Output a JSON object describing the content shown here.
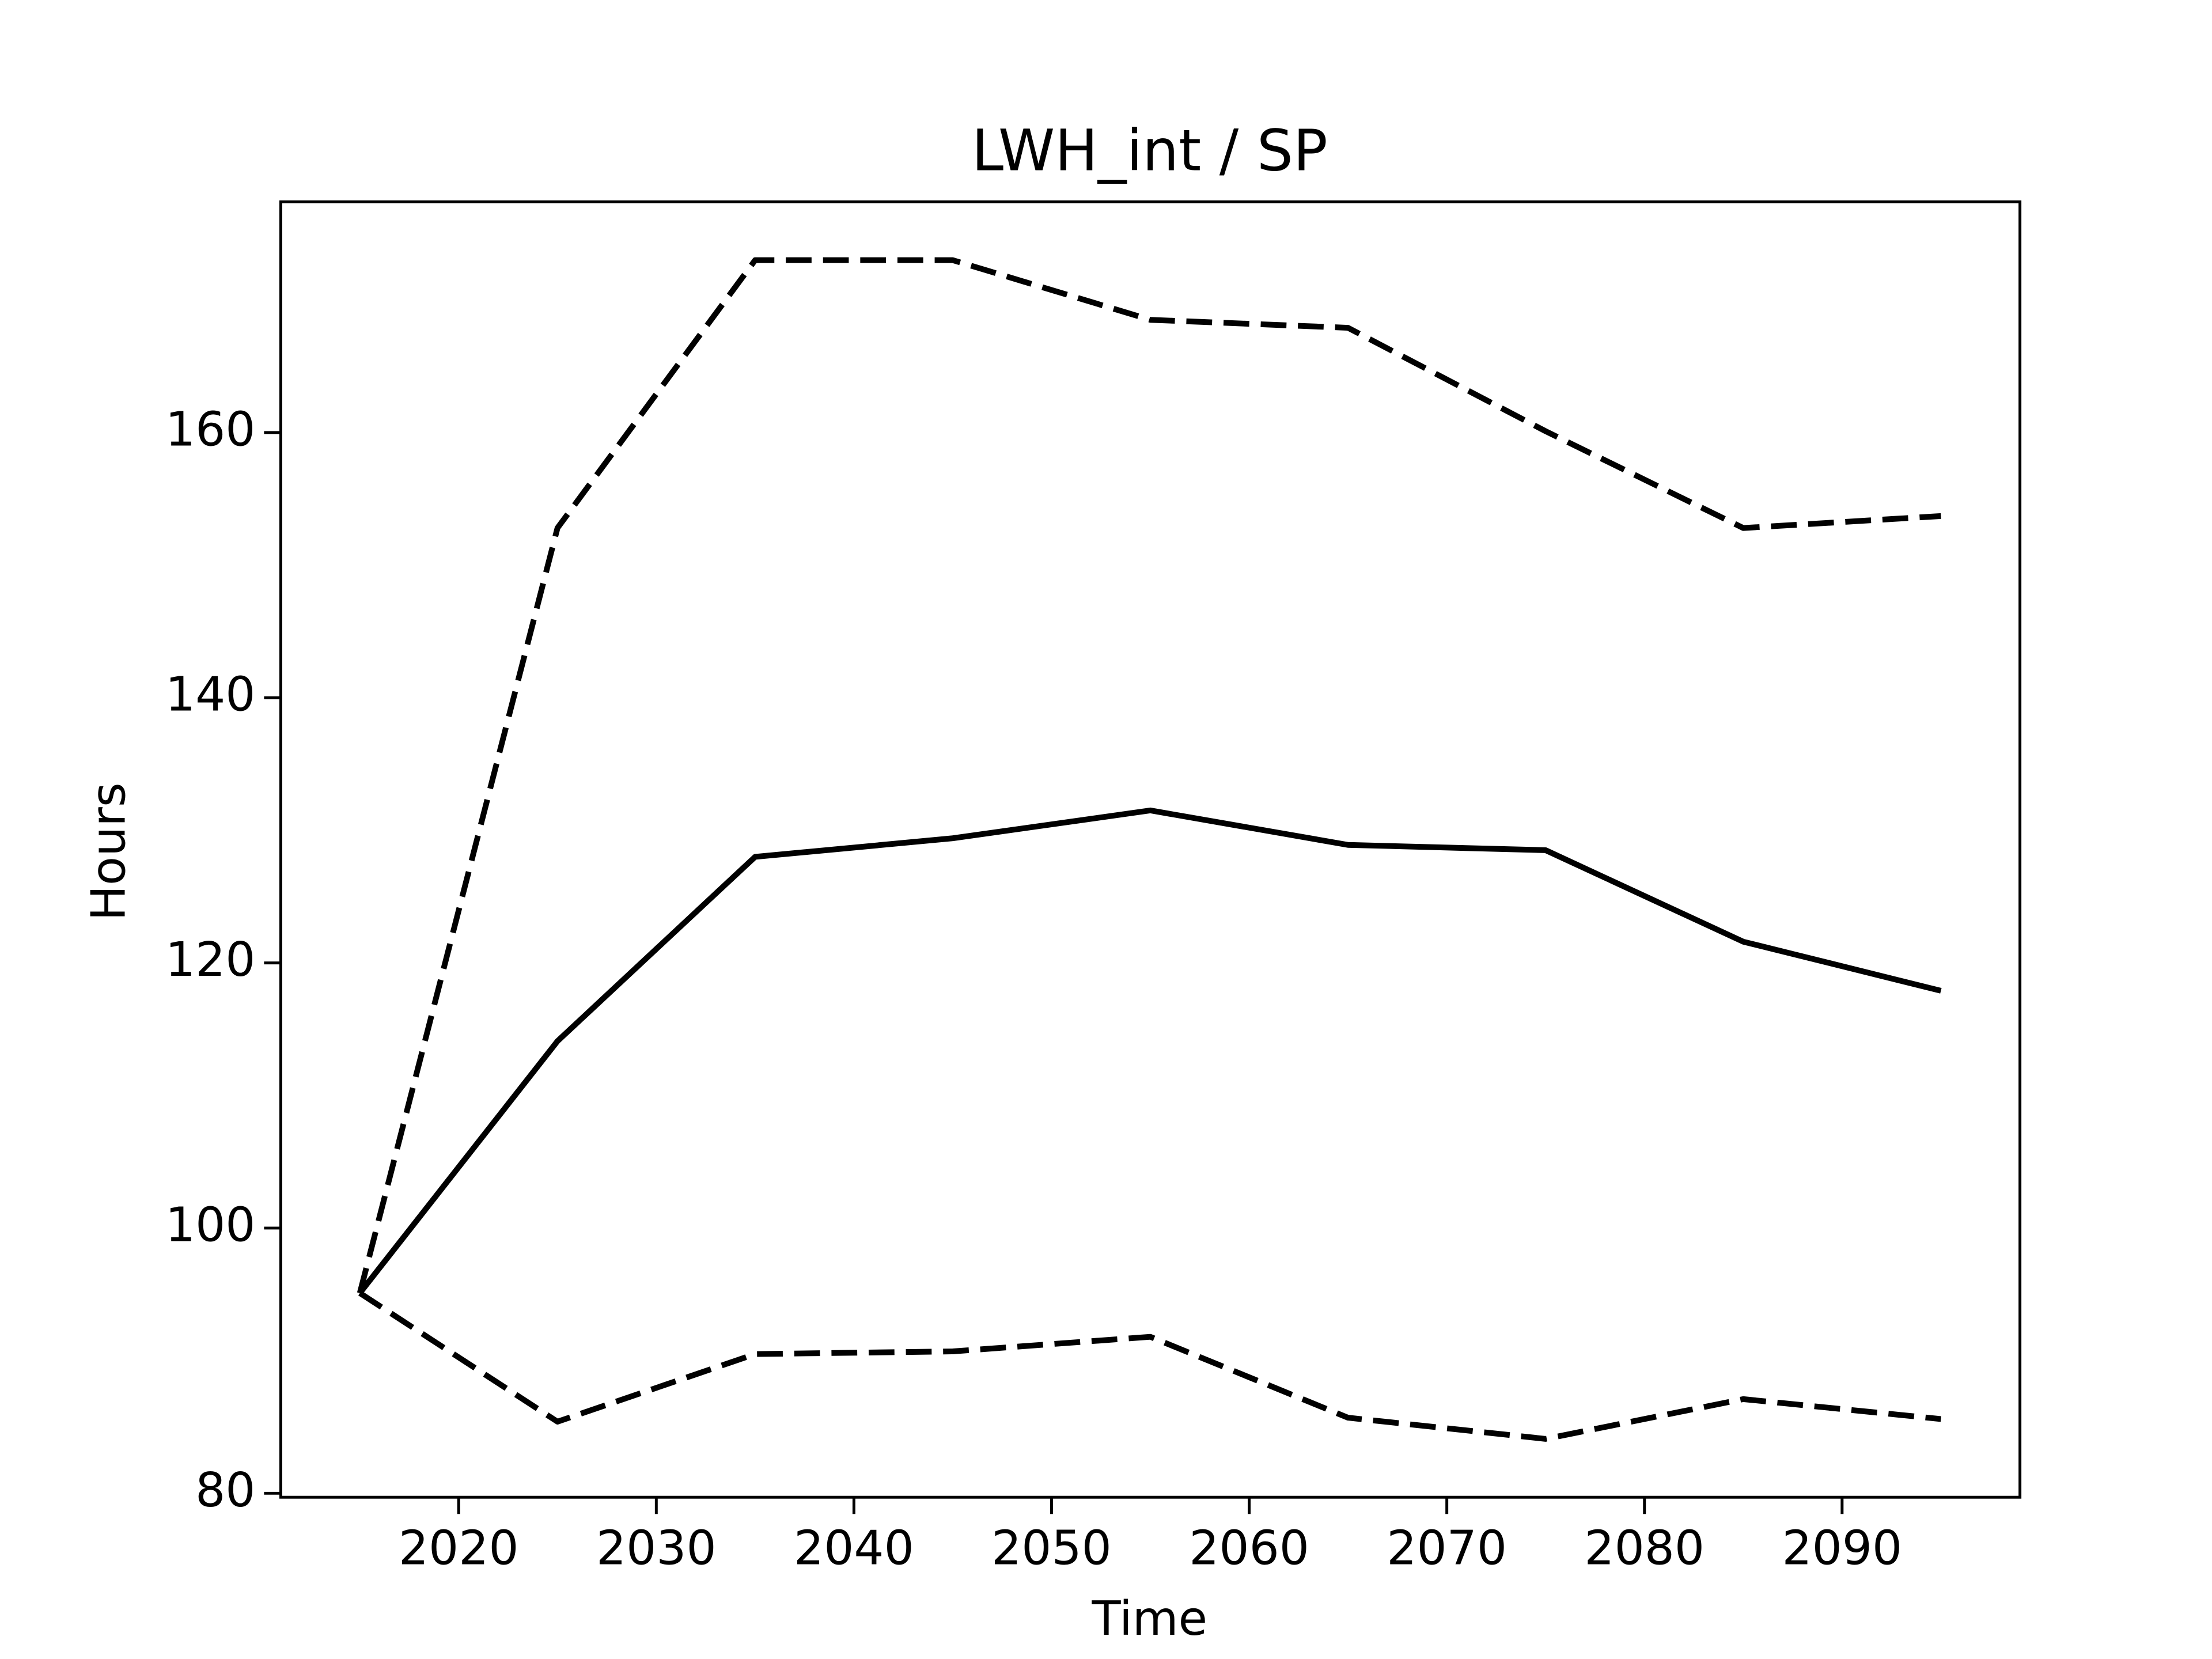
{
  "chart_data": {
    "type": "line",
    "title": "LWH_int / SP",
    "x_label": "Time",
    "y_label": "Hours",
    "x": [
      2015,
      2025,
      2035,
      2045,
      2055,
      2065,
      2075,
      2085,
      2095
    ],
    "series": [
      {
        "color": "#000000",
        "style": "solid",
        "values": [
          95.1,
          114.1,
          128.0,
          129.4,
          131.5,
          128.9,
          128.5,
          121.6,
          117.9
        ]
      },
      {
        "color": "#000000",
        "style": "dashed",
        "values": [
          95.1,
          152.8,
          173.0,
          173.0,
          168.5,
          167.9,
          160.1,
          152.8,
          153.7
        ]
      },
      {
        "color": "#000000",
        "style": "dashed",
        "values": [
          95.1,
          85.4,
          90.5,
          90.7,
          91.8,
          85.7,
          84.1,
          87.1,
          85.6
        ]
      }
    ],
    "xlim": [
      2011,
      2099
    ],
    "ylim": [
      79.7,
      177.4
    ],
    "xticks": [
      2020,
      2030,
      2040,
      2050,
      2060,
      2070,
      2080,
      2090
    ],
    "yticks": [
      80,
      100,
      120,
      140,
      160
    ],
    "grid": false
  }
}
